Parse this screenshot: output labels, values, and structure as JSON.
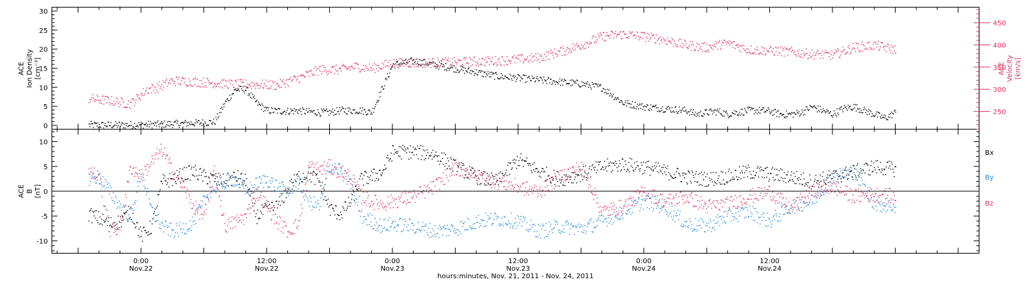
{
  "colors": {
    "black": "#000000",
    "red": "#e0305f",
    "blue": "#1f86e0"
  },
  "chart_data": [
    {
      "type": "scatter",
      "panel": "top",
      "left_axis": {
        "label_lines": [
          "ACE",
          "Ion Density",
          "[cm⁻³]"
        ],
        "ylim": [
          -1,
          31
        ],
        "ticks": [
          0,
          5,
          10,
          15,
          20,
          25,
          30
        ]
      },
      "right_axis": {
        "label_lines": [
          "ACE",
          "Velocity",
          "[km/s]"
        ],
        "ylim": [
          210,
          485
        ],
        "ticks": [
          250,
          300,
          350,
          400,
          450
        ]
      },
      "series": [
        {
          "axis": "left",
          "color": "#000000",
          "x": [
            -5.0,
            -2.5,
            0.0,
            2.0,
            3.0,
            5.0,
            7.0,
            8.0,
            9.0,
            10.0,
            11.0,
            12.0,
            14.0,
            15.0,
            15.5,
            17.0,
            18.0,
            19.0,
            20.0,
            21.0,
            22.0,
            24.0,
            26.0,
            30.0,
            34.0,
            38.0,
            42.0,
            44.0,
            46.0,
            48.0,
            50.0,
            52.0,
            53.0,
            54.0,
            55.0,
            56.0,
            56.5,
            57.0,
            58.0,
            59.0,
            60.0,
            61.0,
            62.0,
            63.0,
            64.0,
            65.0,
            66.0,
            67.0,
            68.0,
            69.0,
            70.0,
            71.0,
            72.0
          ],
          "y": [
            0.2,
            0.2,
            0.3,
            0.4,
            0.5,
            0.7,
            1.0,
            6.0,
            9.5,
            9.5,
            6.0,
            4.0,
            3.8,
            4.0,
            3.8,
            3.5,
            3.5,
            4.0,
            4.0,
            4.0,
            3.5,
            16.0,
            17.0,
            15.0,
            13.0,
            12.0,
            11.0,
            10.0,
            6.0,
            5.0,
            4.5,
            4.0,
            3.0,
            3.5,
            3.8,
            3.0,
            3.5,
            3.5,
            4.0,
            4.0,
            3.8,
            3.0,
            3.0,
            3.5,
            5.0,
            4.0,
            3.0,
            4.5,
            5.0,
            4.0,
            3.0,
            2.0,
            3.5
          ]
        },
        {
          "axis": "right",
          "color": "#e0305f",
          "x": [
            -5.0,
            -3.0,
            -1.0,
            0.5,
            1.5,
            3.0,
            5.0,
            7.0,
            9.0,
            11.0,
            13.0,
            15.5,
            17.0,
            19.0,
            20.5,
            22.0,
            24.0,
            26.0,
            30.0,
            34.0,
            38.0,
            42.0,
            44.0,
            46.0,
            48.0,
            50.0,
            52.0,
            54.0,
            56.0,
            58.0,
            60.0,
            62.0,
            64.0,
            66.0,
            68.0,
            70.0,
            72.0
          ],
          "y": [
            280,
            275,
            268,
            300,
            305,
            320,
            318,
            315,
            312,
            312,
            310,
            330,
            345,
            345,
            352,
            348,
            360,
            360,
            362,
            365,
            372,
            400,
            420,
            425,
            420,
            412,
            400,
            395,
            405,
            390,
            388,
            385,
            380,
            378,
            395,
            400,
            390
          ]
        }
      ]
    },
    {
      "type": "scatter",
      "panel": "bottom",
      "left_axis": {
        "label_lines": [
          "ACE",
          "B",
          "[nT]"
        ],
        "ylim": [
          -12.5,
          12.5
        ],
        "ticks": [
          -10,
          -5,
          0,
          5,
          10
        ]
      },
      "legend": [
        "Bx",
        "By",
        "Bz"
      ],
      "series": [
        {
          "name": "Bx",
          "color": "#000000",
          "x": [
            -5.0,
            -4.0,
            -3.0,
            -2.0,
            -1.0,
            0.0,
            1.0,
            2.0,
            3.0,
            4.0,
            5.0,
            6.0,
            7.0,
            8.0,
            9.0,
            10.0,
            11.0,
            12.0,
            13.0,
            14.0,
            15.0,
            16.0,
            17.0,
            18.0,
            19.0,
            20.0,
            21.0,
            22.0,
            23.0,
            24.0,
            26.0,
            28.0,
            30.0,
            32.0,
            34.0,
            36.0,
            38.0,
            40.0,
            42.0,
            44.0,
            46.0,
            48.0,
            50.0,
            52.0,
            54.0,
            56.0,
            58.0,
            60.0,
            62.0,
            64.0,
            66.0,
            68.0,
            70.0,
            72.0
          ],
          "y": [
            -4.5,
            -5.5,
            -6.5,
            -6.0,
            -4.0,
            -9.0,
            -7.0,
            2.0,
            2.5,
            3.5,
            4.0,
            3.0,
            2.5,
            2.0,
            3.0,
            2.0,
            -5.0,
            -3.5,
            -3.0,
            0.5,
            3.0,
            3.5,
            2.0,
            -3.5,
            -4.5,
            -2.0,
            2.5,
            3.0,
            4.0,
            8.0,
            8.0,
            7.5,
            5.0,
            3.0,
            2.0,
            6.5,
            4.0,
            2.5,
            3.5,
            5.0,
            5.5,
            5.0,
            4.0,
            3.0,
            2.5,
            3.0,
            4.0,
            3.5,
            3.0,
            2.0,
            3.0,
            4.0,
            5.0,
            4.5
          ]
        },
        {
          "name": "By",
          "color": "#1f86e0",
          "x": [
            -5.0,
            -4.0,
            -3.0,
            -2.0,
            -1.0,
            0.0,
            1.0,
            2.0,
            3.0,
            4.0,
            5.0,
            6.0,
            7.0,
            8.0,
            9.0,
            10.0,
            11.0,
            12.0,
            13.0,
            14.0,
            15.0,
            16.0,
            17.0,
            18.0,
            19.0,
            20.0,
            21.0,
            22.0,
            23.0,
            24.0,
            26.0,
            28.0,
            30.0,
            32.0,
            34.0,
            36.0,
            38.0,
            40.0,
            42.0,
            44.0,
            46.0,
            48.0,
            50.0,
            52.0,
            54.0,
            56.0,
            58.0,
            60.0,
            62.0,
            64.0,
            66.0,
            68.0,
            70.0,
            72.0
          ],
          "y": [
            2.5,
            3.0,
            0.0,
            -3.0,
            -5.0,
            4.0,
            -4.0,
            -7.0,
            -8.0,
            -7.5,
            -6.0,
            -2.0,
            1.0,
            2.0,
            2.5,
            0.0,
            1.5,
            2.5,
            1.0,
            0.0,
            2.0,
            -2.0,
            -3.0,
            5.0,
            4.5,
            1.0,
            -5.0,
            -6.0,
            -7.0,
            -6.5,
            -7.0,
            -8.0,
            -7.5,
            -6.0,
            -5.5,
            -6.0,
            -8.0,
            -7.0,
            -7.5,
            -6.0,
            -4.0,
            -2.0,
            -3.0,
            -6.5,
            -7.0,
            -5.0,
            -4.0,
            -6.0,
            -3.0,
            -2.0,
            3.0,
            4.0,
            -2.5,
            -3.0
          ]
        },
        {
          "name": "Bz",
          "color": "#e0305f",
          "x": [
            -5.0,
            -4.0,
            -3.0,
            -2.0,
            -1.0,
            0.0,
            1.0,
            2.0,
            3.0,
            4.0,
            5.0,
            6.0,
            7.0,
            8.0,
            9.0,
            10.0,
            11.0,
            12.0,
            13.0,
            14.0,
            15.0,
            16.0,
            17.0,
            18.0,
            19.0,
            20.0,
            21.0,
            22.0,
            23.0,
            24.0,
            26.0,
            28.0,
            30.0,
            32.0,
            34.0,
            36.0,
            38.0,
            40.0,
            42.0,
            44.0,
            46.0,
            48.0,
            50.0,
            52.0,
            54.0,
            56.0,
            58.0,
            60.0,
            62.0,
            64.0,
            66.0,
            68.0,
            70.0,
            72.0
          ],
          "y": [
            4.0,
            3.0,
            -8.0,
            -7.0,
            5.0,
            3.0,
            6.0,
            8.5,
            4.0,
            1.0,
            -3.0,
            -5.0,
            4.0,
            -7.0,
            -6.0,
            -5.0,
            0.0,
            -3.0,
            -6.0,
            -8.0,
            -6.5,
            5.0,
            4.5,
            5.0,
            4.0,
            3.0,
            -1.0,
            -2.0,
            -2.5,
            -2.0,
            -1.0,
            1.0,
            5.0,
            3.0,
            2.0,
            1.0,
            0.0,
            3.0,
            5.0,
            -4.0,
            -3.0,
            0.0,
            -2.0,
            -1.0,
            -3.0,
            -2.5,
            -1.0,
            0.0,
            -3.5,
            0.0,
            1.0,
            -1.0,
            -0.5,
            -1.0
          ]
        }
      ]
    }
  ],
  "x_axis": {
    "xlim": [
      -8.5,
      80
    ],
    "major": [
      {
        "x": 0,
        "time": "0:00",
        "date": "Nov.22"
      },
      {
        "x": 12,
        "time": "12:00",
        "date": "Nov.22"
      },
      {
        "x": 24,
        "time": "0:00",
        "date": "Nov.23"
      },
      {
        "x": 36,
        "time": "12:00",
        "date": "Nov.23"
      },
      {
        "x": 48,
        "time": "0:00",
        "date": "Nov.24"
      },
      {
        "x": 60,
        "time": "12:00",
        "date": "Nov.24"
      }
    ],
    "title": "hours:minutes, Nov. 21, 2011 - Nov. 24, 2011"
  }
}
